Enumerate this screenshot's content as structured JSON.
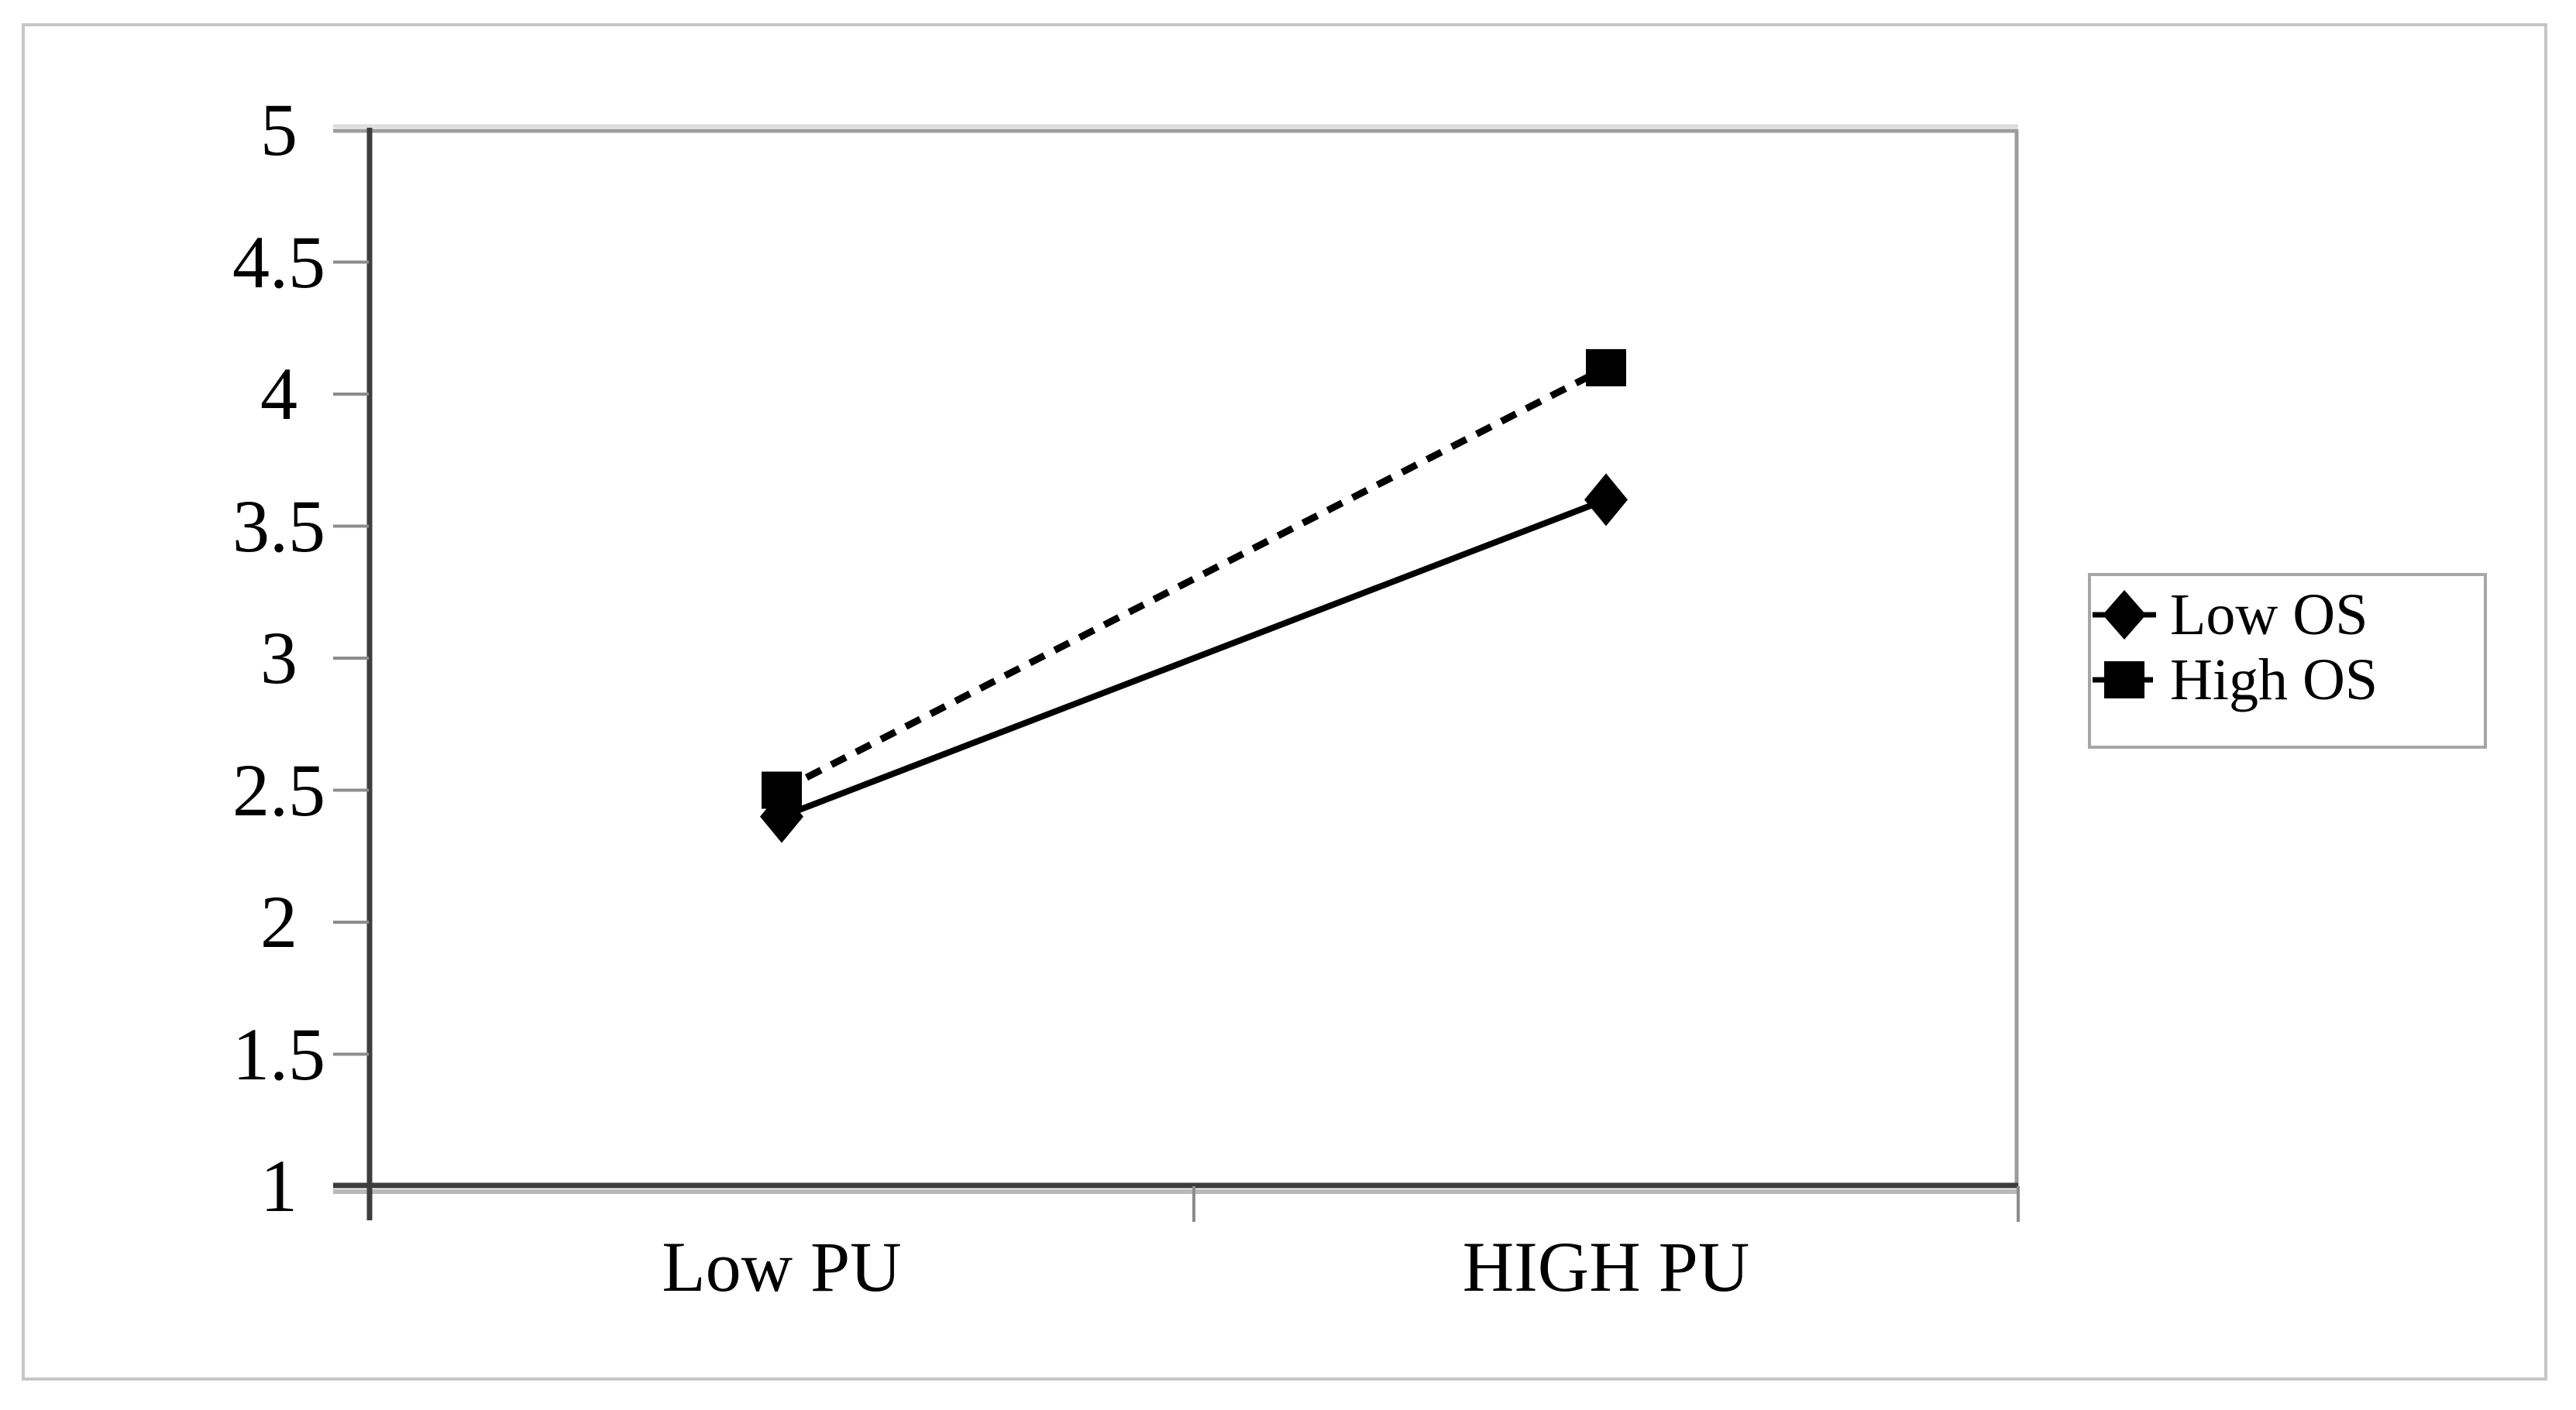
{
  "figure": {
    "background_color": "#ffffff",
    "outer_border_color": "#c6c6c6",
    "plot_border_color": "#9c9c9c",
    "axis_color": "#3d3d3d",
    "tick_color": "#8c8c8c",
    "series_color": "#000000",
    "legend_border_color": "#a6a6a6"
  },
  "chart_data": {
    "type": "line",
    "title": "",
    "categories": [
      "Low PU",
      "HIGH PU"
    ],
    "series": [
      {
        "name": "Low OS",
        "values": [
          2.4,
          3.6
        ],
        "marker": "diamond",
        "line_style": "solid",
        "color": "#000000"
      },
      {
        "name": "High OS",
        "values": [
          2.5,
          4.1
        ],
        "marker": "square",
        "line_style": "dashed",
        "color": "#000000"
      }
    ],
    "xlabel": "",
    "ylabel": "",
    "ylim": [
      1,
      5
    ],
    "ytick_step": 0.5,
    "ytick_labels": [
      "5",
      "4.5",
      "4",
      "3.5",
      "3",
      "2.5",
      "2",
      "1.5",
      "1"
    ],
    "xtick_labels": [
      "Low PU",
      "HIGH PU"
    ],
    "grid": false,
    "legend_position": "right",
    "legend_entries": [
      "Low OS",
      "High OS"
    ]
  }
}
